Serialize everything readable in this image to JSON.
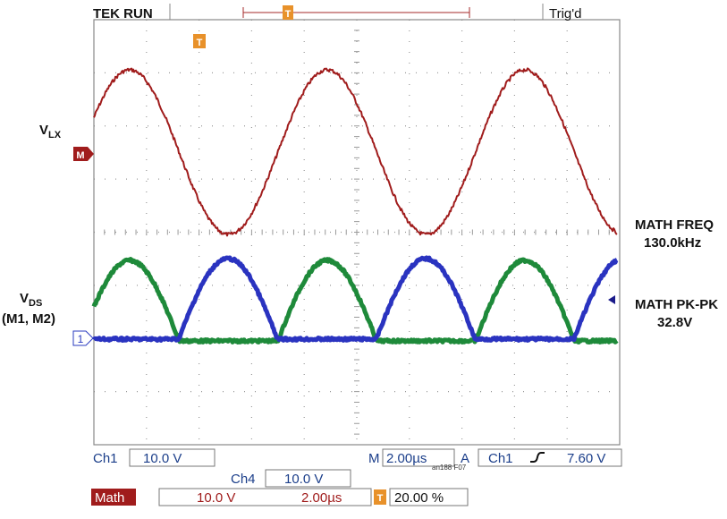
{
  "header": {
    "status": "TEK RUN",
    "trigger_state": "Trig'd",
    "trigger_marker": "T"
  },
  "screen": {
    "math_marker": "M",
    "ch1_marker": "1",
    "trigger_pos_marker": "T"
  },
  "annotations": {
    "vlx": {
      "main": "V",
      "sub": "LX"
    },
    "vds": {
      "main": "V",
      "sub": "DS",
      "note": "(M1, M2)"
    },
    "math_freq": {
      "label": "MATH FREQ",
      "value": "130.0kHz"
    },
    "math_pkpk": {
      "label": "MATH PK-PK",
      "value": "32.8V"
    }
  },
  "readout": {
    "ch1": {
      "label": "Ch1",
      "scale": "10.0 V"
    },
    "timebase": {
      "label": "M",
      "value": "2.00µs"
    },
    "trigger": {
      "mode": "A",
      "source": "Ch1",
      "level": "7.60 V"
    },
    "ch4": {
      "label": "Ch4",
      "scale": "10.0 V"
    },
    "math": {
      "label": "Math",
      "scale": "10.0 V",
      "time": "2.00µs",
      "marker": "T",
      "position": "20.00 %"
    },
    "figure_id": "an188 F07"
  }
}
